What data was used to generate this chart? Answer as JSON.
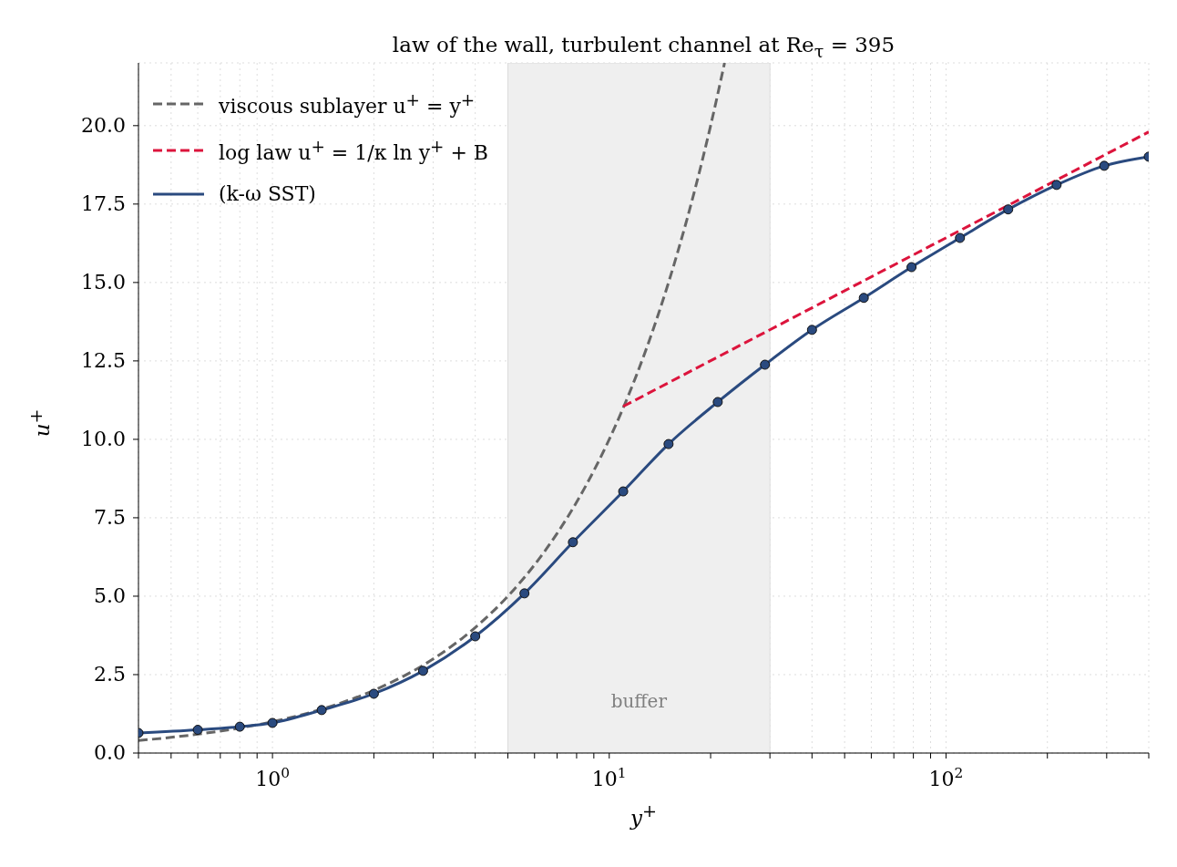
{
  "chart_data": {
    "type": "line",
    "title": "law of the wall, turbulent channel at Re$_{τ}$ = 395",
    "xlabel": "y$^{+}$",
    "ylabel": "u$^{+}$",
    "log": "x",
    "grid": true,
    "legend": "top left",
    "xlim": [
      0.4,
      400
    ],
    "ylim": [
      0,
      22
    ],
    "xticks": [
      {
        "value": 0.4,
        "label": null
      },
      {
        "value": 0.5,
        "label": null
      },
      {
        "value": 0.6,
        "label": null
      },
      {
        "value": 0.7,
        "label": null
      },
      {
        "value": 0.8,
        "label": null
      },
      {
        "value": 0.9,
        "label": null
      },
      {
        "value": 1,
        "label": "10$^{0}$"
      },
      {
        "value": 2,
        "label": null
      },
      {
        "value": 3,
        "label": null
      },
      {
        "value": 4,
        "label": null
      },
      {
        "value": 5,
        "label": null
      },
      {
        "value": 6,
        "label": null
      },
      {
        "value": 7,
        "label": null
      },
      {
        "value": 8,
        "label": null
      },
      {
        "value": 9,
        "label": null
      },
      {
        "value": 10,
        "label": "10$^{1}$"
      },
      {
        "value": 20,
        "label": null
      },
      {
        "value": 30,
        "label": null
      },
      {
        "value": 40,
        "label": null
      },
      {
        "value": 50,
        "label": null
      },
      {
        "value": 60,
        "label": null
      },
      {
        "value": 70,
        "label": null
      },
      {
        "value": 80,
        "label": null
      },
      {
        "value": 90,
        "label": null
      },
      {
        "value": 100,
        "label": "10$^{2}$"
      },
      {
        "value": 200,
        "label": null
      },
      {
        "value": 300,
        "label": null
      },
      {
        "value": 400,
        "label": null
      }
    ],
    "yticks": [
      {
        "value": 0,
        "label": "0.0"
      },
      {
        "value": 2.5,
        "label": "2.5"
      },
      {
        "value": 5,
        "label": "5.0"
      },
      {
        "value": 7.5,
        "label": "7.5"
      },
      {
        "value": 10,
        "label": "10.0"
      },
      {
        "value": 12.5,
        "label": "12.5"
      },
      {
        "value": 15,
        "label": "15.0"
      },
      {
        "value": 17.5,
        "label": "17.5"
      },
      {
        "value": 20,
        "label": "20.0"
      }
    ],
    "bands": [
      {
        "axis": "x",
        "from": 5,
        "to": 30,
        "label": "buffer",
        "color": "#efefef"
      }
    ],
    "series": [
      {
        "name": "viscous sublayer u$^{+}$ = y$^{+}$",
        "color": "#666666",
        "line_style": "dashed",
        "marker": "none",
        "x": [
          0.4,
          0.5,
          0.6,
          0.8,
          1,
          1.5,
          2,
          3,
          4,
          5,
          6,
          7,
          8,
          9,
          10,
          12,
          14,
          16,
          18,
          20,
          22
        ],
        "values": [
          0.4,
          0.5,
          0.6,
          0.8,
          1,
          1.5,
          2,
          3,
          4,
          5,
          6,
          7,
          8,
          9,
          10,
          12,
          14,
          16,
          18,
          20,
          22
        ]
      },
      {
        "name": "log law u$^{+}$ = 1/κ ln y$^{+}$ + B",
        "color": "#dc143c",
        "line_style": "dashed",
        "marker": "none",
        "x": [
          11,
          400
        ],
        "values": [
          11.05,
          19.8
        ]
      },
      {
        "name": "(k-ω SST)",
        "color": "#2a4a7f",
        "line_style": "solid",
        "marker": "circle",
        "x": [
          0.4,
          0.6,
          0.8,
          1,
          1.4,
          2,
          2.8,
          4,
          5.6,
          7.8,
          11,
          15,
          21,
          29,
          40,
          57,
          79,
          110,
          153,
          213,
          295,
          400
        ],
        "values": [
          0.64,
          0.74,
          0.84,
          0.96,
          1.37,
          1.89,
          2.62,
          3.72,
          5.09,
          6.72,
          8.34,
          9.85,
          11.19,
          12.38,
          13.49,
          14.51,
          15.49,
          16.42,
          17.33,
          18.11,
          18.72,
          19.01
        ]
      }
    ]
  }
}
